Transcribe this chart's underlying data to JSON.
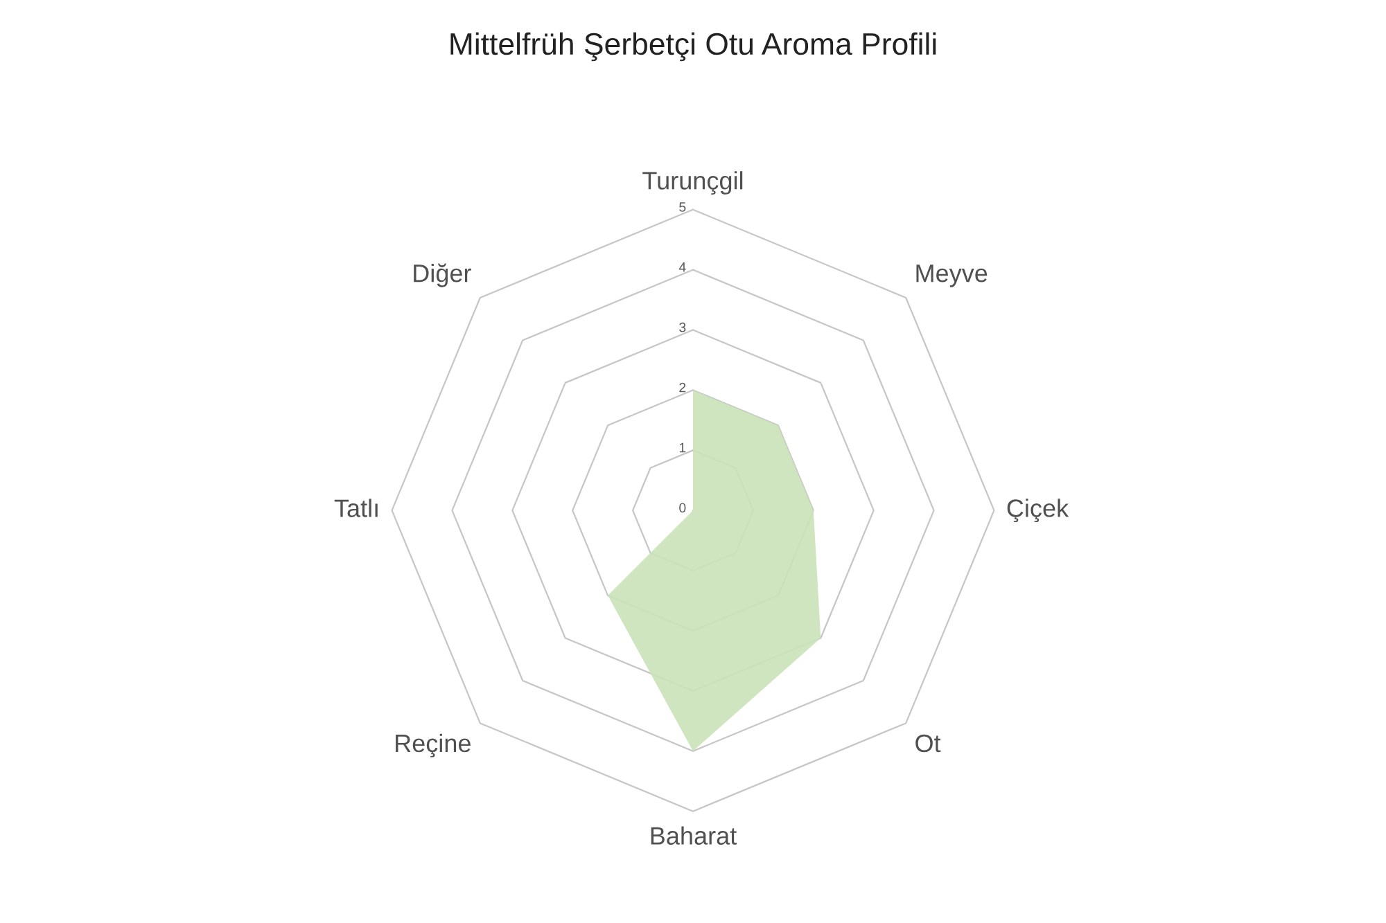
{
  "chart_data": {
    "type": "radar",
    "title": "Mittelfrüh Şerbetçi Otu Aroma Profili",
    "categories": [
      "Turunçgil",
      "Meyve",
      "Çiçek",
      "Ot",
      "Baharat",
      "Reçine",
      "Tatlı",
      "Diğer"
    ],
    "series": [
      {
        "color": "#c9e2b8",
        "values": [
          2,
          2,
          2,
          3,
          4,
          2,
          0,
          0
        ]
      }
    ],
    "ylim": [
      0,
      5
    ],
    "yticks": [
      0,
      1,
      2,
      3,
      4,
      5
    ],
    "grid": true
  }
}
